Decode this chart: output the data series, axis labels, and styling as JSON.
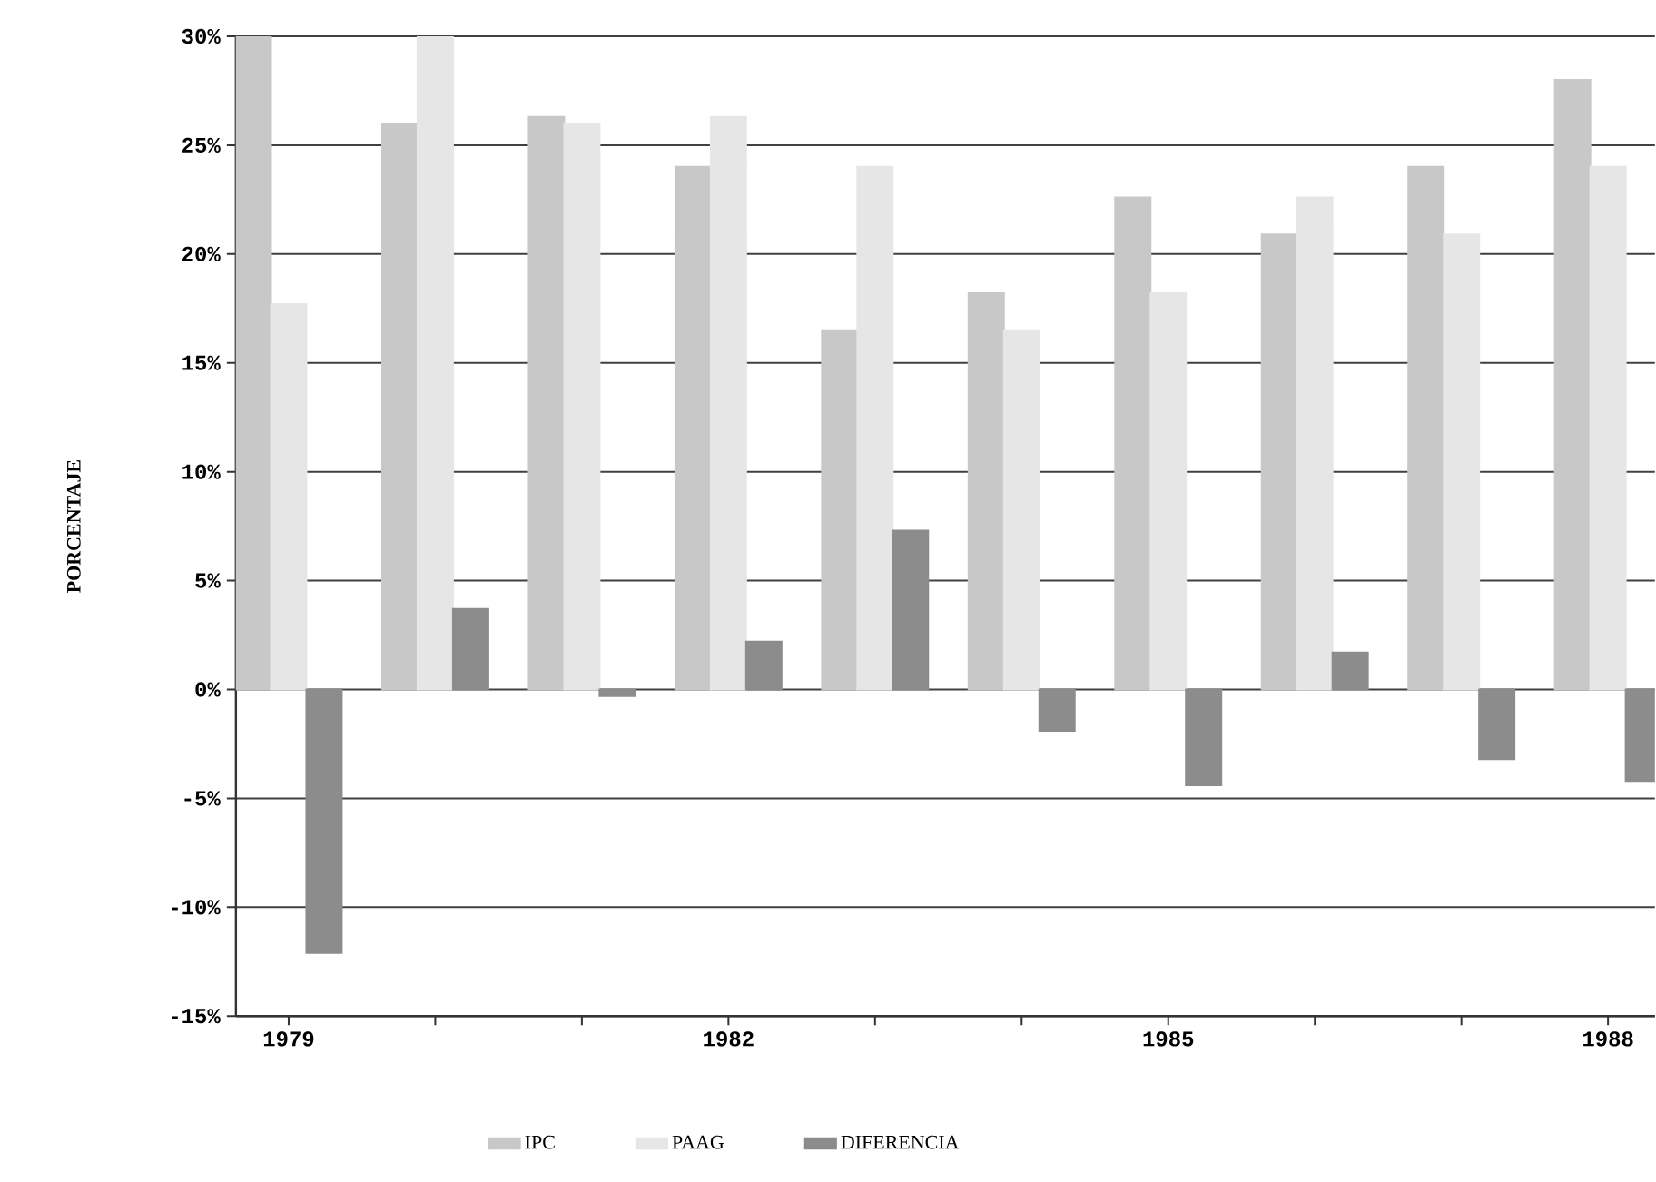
{
  "chart_data": {
    "type": "bar",
    "ylabel": "PORCENTAJE",
    "categories": [
      "1979",
      null,
      null,
      "1982",
      null,
      null,
      "1985",
      null,
      null,
      "1988"
    ],
    "series": [
      {
        "name": "IPC",
        "color": "#c8c8c8",
        "values": [
          30,
          26.0,
          26.3,
          24.0,
          16.5,
          18.2,
          22.6,
          20.9,
          24.0,
          28.0
        ]
      },
      {
        "name": "PAAG",
        "color": "#e6e6e6",
        "values": [
          17.7,
          30,
          26.0,
          26.3,
          24.0,
          16.5,
          18.2,
          22.6,
          20.9,
          24.0
        ]
      },
      {
        "name": "DIFERENCIA",
        "color": "#8c8c8c",
        "values": [
          -12.1,
          3.7,
          -0.3,
          2.2,
          7.3,
          -1.9,
          -4.4,
          1.7,
          -3.2,
          -4.2
        ]
      }
    ],
    "ylim": [
      -15,
      30
    ],
    "yticks": [
      {
        "value": -15,
        "label": "-15%"
      },
      {
        "value": -10,
        "label": "-10%"
      },
      {
        "value": -5,
        "label": "-5%"
      },
      {
        "value": 0,
        "label": "0%"
      },
      {
        "value": 5,
        "label": "5%"
      },
      {
        "value": 10,
        "label": "10%"
      },
      {
        "value": 15,
        "label": "15%"
      },
      {
        "value": 20,
        "label": "20%"
      },
      {
        "value": 25,
        "label": "25%"
      },
      {
        "value": 30,
        "label": "30%"
      }
    ],
    "grid": "y",
    "legend": "bottom"
  }
}
